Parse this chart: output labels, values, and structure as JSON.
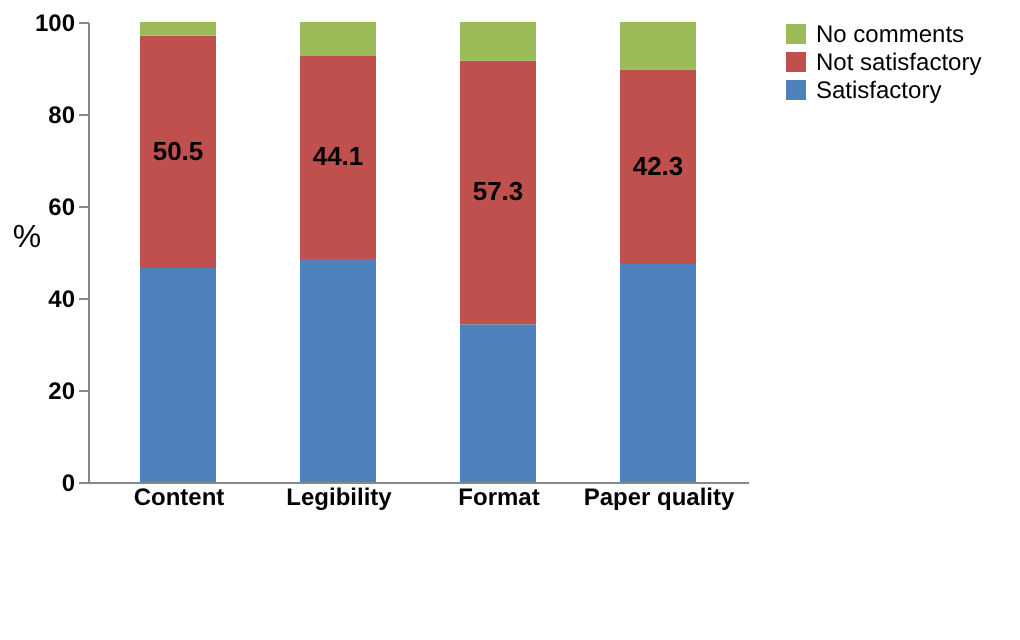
{
  "chart_data": {
    "type": "bar",
    "stacked": true,
    "ylabel": "%",
    "categories": [
      "Content",
      "Legibility",
      "Format",
      "Paper quality"
    ],
    "series": [
      {
        "name": "Satisfactory",
        "color": "#4f81bd",
        "values": [
          46.5,
          48.5,
          34.3,
          47.4
        ]
      },
      {
        "name": "Not satisfactory",
        "color": "#c0504d",
        "values": [
          50.5,
          44.1,
          57.3,
          42.3
        ],
        "value_labels": [
          "50.5",
          "44.1",
          "57.3",
          "42.3"
        ]
      },
      {
        "name": "No comments",
        "color": "#9bbb59",
        "values": [
          3.0,
          7.4,
          8.4,
          10.3
        ]
      }
    ],
    "ylim": [
      0,
      100
    ],
    "yticks": [
      0,
      20,
      40,
      60,
      80,
      100
    ],
    "grid": false,
    "legend": "right"
  }
}
